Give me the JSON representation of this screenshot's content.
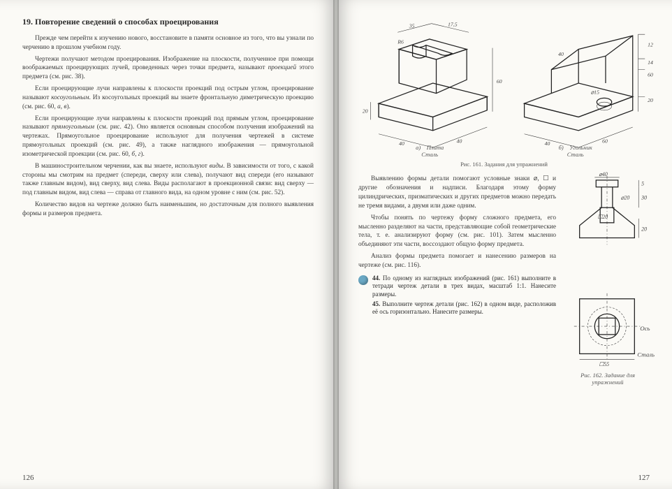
{
  "left": {
    "heading": "19. Повторение сведений о способах проецирования",
    "paragraphs": [
      "Прежде чем перейти к изучению нового, восстановите в памяти основное из того, что вы узнали по черчению в прошлом учебном году.",
      "Чертежи получают методом проецирования. Изображение на плоскости, полученное при помощи воображаемых проецирующих лучей, проведенных через точки предмета, называют <span class='i'>проекцией</span> этого предмета (см. рис. 38).",
      "Если проецирующие лучи направлены к плоскости проекций под острым углом, проецирование называют <span class='i'>косоугольным</span>. Из косоугольных проекций вы знаете фронтальную диметрическую проекцию (см. рис. 60, <span class='i'>а, в</span>).",
      "Если проецирующие лучи направлены к плоскости проекций под прямым углом, проецирование называют <span class='i'>прямоугольным</span> (см. рис. 42). Оно является основным способом получения изображений на чертежах. Прямоугольное проецирование используют для получения чертежей в системе прямоугольных проекций (см. рис. 49), а также наглядного изображения — прямоугольной изометрической проекции (см. рис. 60, <span class='i'>б, г</span>).",
      "В машиностроительном черчении, как вы знаете, используют <span class='i'>виды</span>. В зависимости от того, с какой стороны мы смотрим на предмет (спереди, сверху или слева), получают вид спереди (его называют также главным видом), вид сверху, вид слева. Виды располагают в проекционной связи: вид сверху — под главным видом, вид слева — справа от главного вида, на одном уровне с ним (см. рис. 52).",
      "Количество видов на чертеже должно быть наименьшим, но достаточным для полного выявления формы и размеров предмета."
    ],
    "pagenum": "126"
  },
  "right": {
    "fig161": {
      "caption": "Рис. 161. Задания для упражнений",
      "dims_a": {
        "w": "40",
        "d": "40",
        "h": "60",
        "top_w": "35",
        "top_d": "17,5",
        "slot": "20",
        "r": "R6"
      },
      "dims_b": {
        "w": "40",
        "d": "60",
        "h": "60",
        "cut": "40",
        "t1": "12",
        "t2": "14",
        "t3": "20",
        "hole": "⌀15"
      },
      "labels": {
        "a": "a)",
        "b": "б)",
        "mat_a_1": "Плита",
        "mat_a_2": "Сталь",
        "mat_b_1": "Угольник",
        "mat_b_2": "Сталь"
      }
    },
    "paragraphs": [
      "Выявлению формы детали помогают условные знаки ⌀, ☐ и другие обозначения и надписи. Благодаря этому форму цилиндрических, призматических и других предметов можно передать не тремя видами, а двумя или даже одним.",
      "Чтобы понять по чертежу форму сложного предмета, его мысленно разделяют на части, представляющие собой геометрические тела, т. е. анализируют форму (см. рис. 101). Затем мысленно объединяют эти части, воссоздают общую форму предмета.",
      "Анализ формы предмета помогает и нанесению размеров на чертеже (см. рис. 116)."
    ],
    "tasks": [
      {
        "num": "44.",
        "text": "По одному из наглядных изображений (рис. 161) выполните в тетради чертеж детали в трех видах, масштаб 1:1. Нанесите размеры."
      },
      {
        "num": "45.",
        "text": "Выполните чертеж детали (рис. 162) в одном виде, расположив её ось горизонтально. Нанесите размеры."
      }
    ],
    "fig162": {
      "caption": "Рис. 162. Задание для упражнений",
      "dims": {
        "d_top": "⌀40",
        "d_shaft": "⌀20",
        "sq": "☐20",
        "base": "☐55",
        "h_top": "5",
        "h_mid": "30",
        "h_low": "20"
      },
      "labels": {
        "axis": "Ось",
        "mat": "Сталь"
      }
    },
    "pagenum": "127"
  }
}
